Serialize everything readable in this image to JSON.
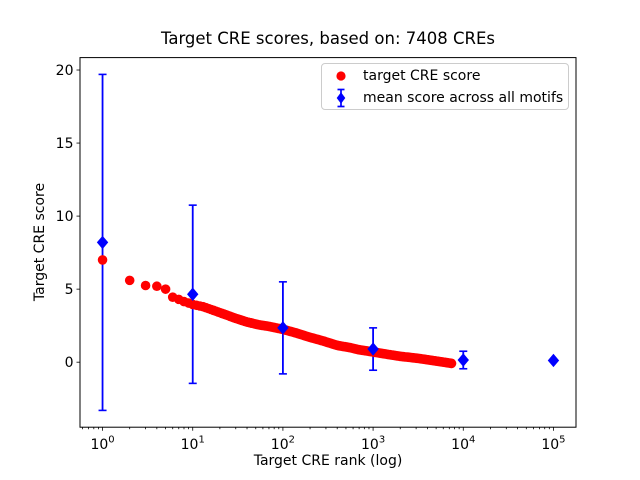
{
  "chart_data": {
    "type": "scatter",
    "title": "Target CRE scores, based on: 7408 CREs",
    "xlabel": "Target CRE rank (log)",
    "ylabel": "Target CRE score",
    "x_scale": "log",
    "grid": false,
    "xlim_log10": [
      -0.25,
      5.25
    ],
    "ylim": [
      -4.45,
      20.85
    ],
    "x_tick_exponents": [
      0,
      1,
      2,
      3,
      4,
      5
    ],
    "x_tick_base": "10",
    "y_ticks": [
      0,
      5,
      10,
      15,
      20
    ],
    "legend_position": "upper right",
    "series": [
      {
        "name": "target CRE score",
        "marker": "circle",
        "color": "#ff0000",
        "n_points": 7408,
        "rank_range": [
          1,
          7408
        ],
        "anchor_ranks": [
          1,
          2,
          3,
          4,
          5,
          6,
          7,
          8,
          9,
          10,
          13,
          17,
          22,
          30,
          40,
          55,
          70,
          100,
          140,
          200,
          280,
          400,
          550,
          700,
          1000,
          1400,
          2000,
          3000,
          4000,
          5000,
          7408
        ],
        "anchor_scores": [
          7.0,
          5.6,
          5.25,
          5.2,
          5.0,
          4.45,
          4.3,
          4.15,
          4.05,
          3.95,
          3.8,
          3.55,
          3.3,
          3.0,
          2.75,
          2.55,
          2.45,
          2.25,
          2.0,
          1.7,
          1.45,
          1.15,
          1.0,
          0.85,
          0.7,
          0.55,
          0.4,
          0.28,
          0.17,
          0.08,
          -0.08
        ]
      },
      {
        "name": "mean score across all motifs",
        "marker": "diamond",
        "color": "#0000ff",
        "points": [
          {
            "rank": 1,
            "mean": 8.2,
            "err": 11.5
          },
          {
            "rank": 10,
            "mean": 4.65,
            "err": 6.1
          },
          {
            "rank": 100,
            "mean": 2.35,
            "err": 3.15
          },
          {
            "rank": 1000,
            "mean": 0.9,
            "err": 1.45
          },
          {
            "rank": 10000,
            "mean": 0.15,
            "err": 0.6
          },
          {
            "rank": 100000,
            "mean": 0.12,
            "err": 0.04
          }
        ]
      }
    ]
  }
}
